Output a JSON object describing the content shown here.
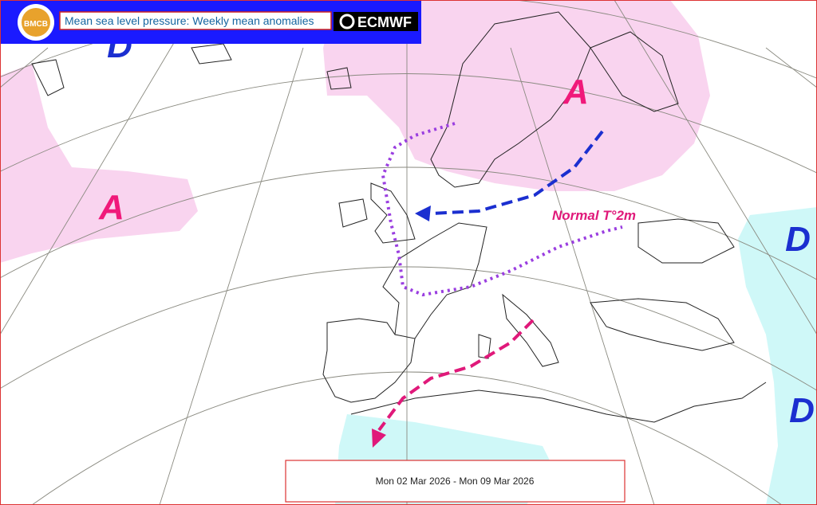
{
  "header": {
    "logo": "BMCB",
    "title": "Mean sea level pressure: Weekly mean anomalies",
    "brand": "ECMWF"
  },
  "labels": [
    {
      "text": "A"
    },
    {
      "text": "A"
    },
    {
      "text": "D"
    },
    {
      "text": "D"
    },
    {
      "text": "D"
    }
  ],
  "annotation": "Normal T°2m",
  "date_range": "Mon 02 Mar 2026 - Mon 09 Mar 2026"
}
